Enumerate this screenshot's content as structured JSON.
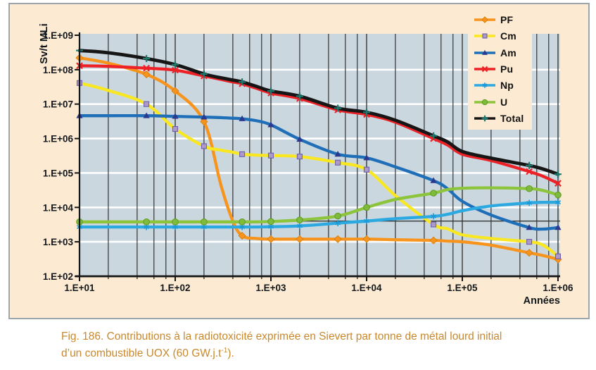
{
  "figure": {
    "caption": {
      "line1": "Fig. 186. Contributions à la radiotoxicité exprimée en Sievert par tonne de métal lourd initial",
      "line2_pre": "d’un combustible UOX (60 GW.j.t",
      "line2_sup": "-1",
      "line2_post": ")."
    }
  },
  "palette": {
    "page_bg": "#FFFFFF",
    "figure_bg": "#FCEBD2",
    "figure_border": "#9DA5AC",
    "plot_bg": "#CBD7DF",
    "grid_white": "#FFFFFF",
    "grid_dark": "#2B2B2B",
    "axis": "#161616",
    "text": "#14181C",
    "caption": "#C9882D",
    "reference_line": "#333333"
  },
  "chart_data": {
    "type": "line",
    "title": "",
    "xlabel": "Années",
    "ylabel": "Sv/t MLi",
    "x_scale": "log",
    "y_scale": "log",
    "xlim": [
      10,
      1000000
    ],
    "ylim": [
      100,
      1000000000
    ],
    "x_tick_labels": [
      "1.E+01",
      "1.E+02",
      "1.E+03",
      "1.E+04",
      "1.E+05",
      "1.E+06"
    ],
    "y_tick_labels": [
      "1.E+09",
      "1.E+08",
      "1.E+07",
      "1.E+06",
      "1.E+05",
      "1.E+04",
      "1.E+03",
      "1.E+02"
    ],
    "grid": {
      "horizontal_major_color": "white",
      "vertical_minor_multiples": [
        2,
        4,
        6,
        8
      ],
      "vertical_major": true
    },
    "legend_position": "top-right",
    "reference_line_y": 4000,
    "x": [
      10,
      20,
      50,
      100,
      200,
      300,
      400,
      500,
      700,
      1000,
      2000,
      5000,
      10000,
      20000,
      50000,
      70000,
      100000,
      200000,
      500000,
      700000,
      1000000
    ],
    "marker_x": [
      10,
      50,
      100,
      200,
      500,
      1000,
      2000,
      5000,
      10000,
      50000,
      500000,
      1000000
    ],
    "series": [
      {
        "name": "PF",
        "color": "#F7941E",
        "marker": "diamond",
        "marker_color": "#F7941E",
        "marker_edge": "#D57A08",
        "values": [
          220000000.0,
          155000000.0,
          73000000.0,
          24000000.0,
          3100000.0,
          45000.0,
          4000,
          1500,
          1250,
          1200,
          1200,
          1200,
          1200,
          1150,
          1100,
          1050,
          1000,
          800,
          480,
          400,
          310
        ]
      },
      {
        "name": "Cm",
        "color": "#F9E821",
        "marker": "square",
        "marker_color": "#AC9BC9",
        "marker_edge": "#6F5FA9",
        "values": [
          41000000.0,
          25000000.0,
          10000000.0,
          1900000.0,
          600000.0,
          460000.0,
          400000.0,
          350000.0,
          330000.0,
          320000.0,
          300000.0,
          200000.0,
          125000.0,
          22000.0,
          3200,
          2400,
          1600,
          1250,
          1000,
          800,
          380
        ]
      },
      {
        "name": "Am",
        "color": "#1F6FB8",
        "marker": "triangle",
        "marker_color": "#2B3990",
        "marker_edge": "#1F2C74",
        "values": [
          4600000.0,
          4600000.0,
          4600000.0,
          4400000.0,
          4200000.0,
          4050000.0,
          3900000.0,
          3750000.0,
          3300000.0,
          2500000.0,
          950000.0,
          350000.0,
          275000.0,
          150000.0,
          60000.0,
          35000.0,
          15000.0,
          6000,
          2600,
          2350,
          2600
        ]
      },
      {
        "name": "Pu",
        "color": "#EC2227",
        "marker": "x",
        "marker_color": "#EC2227",
        "marker_edge": "#C4151A",
        "values": [
          130000000.0,
          125000000.0,
          110000000.0,
          97000000.0,
          66000000.0,
          52000000.0,
          44000000.0,
          39000000.0,
          29000000.0,
          21000000.0,
          14500000.0,
          6800000.0,
          5000000.0,
          3000000.0,
          1000000.0,
          650000.0,
          350000.0,
          230000.0,
          110000.0,
          80000.0,
          50000.0
        ]
      },
      {
        "name": "Np",
        "color": "#2BA9E0",
        "marker": "asterisk",
        "marker_color": "#1E9BD7",
        "marker_edge": "#1781B6",
        "values": [
          2700,
          2700,
          2700,
          2700,
          2700,
          2700,
          2700,
          2700,
          2700,
          2750,
          2900,
          3500,
          4000,
          4700,
          5500,
          6300,
          8000,
          11000,
          13500,
          14000,
          14000
        ]
      },
      {
        "name": "U",
        "color": "#8CC43C",
        "marker": "circle",
        "marker_color": "#7EBB3D",
        "marker_edge": "#5E9A22",
        "values": [
          3800,
          3800,
          3800,
          3800,
          3800,
          3800,
          3800,
          3800,
          3800,
          3900,
          4300,
          5600,
          10000,
          17000,
          26000,
          33000,
          36000,
          37000,
          35000,
          31000,
          23000
        ]
      },
      {
        "name": "Total",
        "color": "#161616",
        "marker": "plus",
        "marker_color": "#1D7A6E",
        "marker_edge": "#1D7A6E",
        "values": [
          360000000.0,
          310000000.0,
          210000000.0,
          140000000.0,
          75000000.0,
          58000000.0,
          50000000.0,
          44000000.0,
          33000000.0,
          24000000.0,
          17000000.0,
          7600000.0,
          5800000.0,
          3400000.0,
          1200000.0,
          800000.0,
          420000.0,
          270000.0,
          165000.0,
          130000.0,
          92000.0
        ]
      }
    ]
  }
}
